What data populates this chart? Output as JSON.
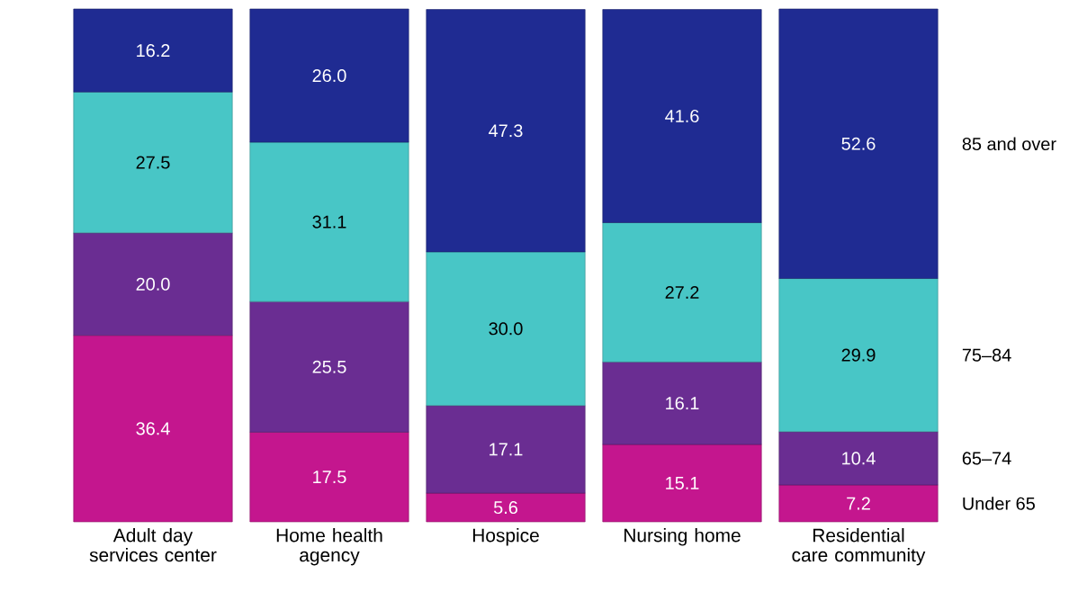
{
  "chart_data": {
    "type": "bar",
    "stacked": true,
    "legend": "right",
    "categories": [
      "Adult day services center",
      "Home health agency",
      "Hospice",
      "Nursing home",
      "Residential care community"
    ],
    "series": [
      {
        "name": "Under 65",
        "color": "#c4168e",
        "values": [
          36.4,
          17.5,
          5.6,
          15.1,
          7.2
        ],
        "value_labels": [
          "36.4",
          "17.5",
          "5.6",
          "15.1",
          "7.2"
        ]
      },
      {
        "name": "65–74",
        "color": "#6a2d92",
        "values": [
          20.0,
          25.5,
          17.1,
          16.1,
          10.4
        ],
        "value_labels": [
          "20.0",
          "25.5",
          "17.1",
          "16.1",
          "10.4"
        ]
      },
      {
        "name": "75–84",
        "color": "#48c6c6",
        "values": [
          27.5,
          31.1,
          30.0,
          27.2,
          29.9
        ],
        "value_labels": [
          "27.5",
          "31.1",
          "30.0",
          "27.2",
          "29.9"
        ]
      },
      {
        "name": "85 and over",
        "color": "#1f2b92",
        "values": [
          16.2,
          26.0,
          47.3,
          41.6,
          52.6
        ],
        "value_labels": [
          "16.2",
          "26.0",
          "47.3",
          "41.6",
          "52.6"
        ]
      }
    ]
  }
}
